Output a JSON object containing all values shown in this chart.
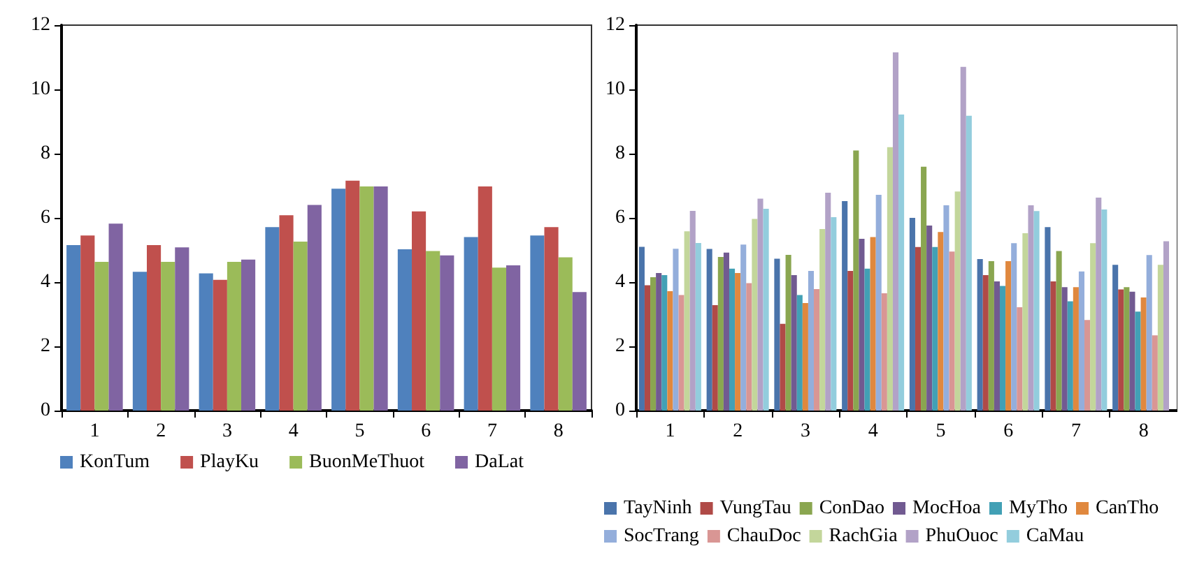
{
  "chart_data": [
    {
      "type": "bar",
      "categories": [
        "1",
        "2",
        "3",
        "4",
        "5",
        "6",
        "7",
        "8"
      ],
      "ylim": [
        0,
        12
      ],
      "yticks": [
        0,
        2,
        4,
        6,
        8,
        10,
        12
      ],
      "grid": false,
      "legend": "bottom",
      "series": [
        {
          "name": "KonTum",
          "color": "#4f81bd",
          "values": [
            5.15,
            4.32,
            4.27,
            5.71,
            6.91,
            5.02,
            5.4,
            5.45
          ]
        },
        {
          "name": "PlayKu",
          "color": "#c0504d",
          "values": [
            5.45,
            5.15,
            4.07,
            6.08,
            7.16,
            6.2,
            6.98,
            5.71
          ]
        },
        {
          "name": "BuonMeThuot",
          "color": "#9bbb59",
          "values": [
            4.63,
            4.63,
            4.63,
            5.26,
            6.98,
            4.97,
            4.45,
            4.77
          ]
        },
        {
          "name": "DaLat",
          "color": "#8064a2",
          "values": [
            5.82,
            5.08,
            4.7,
            6.4,
            6.98,
            4.83,
            4.52,
            3.69
          ]
        }
      ]
    },
    {
      "type": "bar",
      "categories": [
        "1",
        "2",
        "3",
        "4",
        "5",
        "6",
        "7",
        "8"
      ],
      "ylim": [
        0,
        12
      ],
      "yticks": [
        0,
        2,
        4,
        6,
        8,
        10,
        12
      ],
      "grid": false,
      "legend": "bottom",
      "series": [
        {
          "name": "TayNinh",
          "color": "#4a74ab",
          "values": [
            5.1,
            5.03,
            4.73,
            6.52,
            6.0,
            4.72,
            5.71,
            4.54
          ]
        },
        {
          "name": "VungTau",
          "color": "#b04a47",
          "values": [
            3.9,
            3.28,
            2.7,
            4.35,
            5.09,
            4.22,
            4.02,
            3.77
          ]
        },
        {
          "name": "ConDao",
          "color": "#8aa650",
          "values": [
            4.15,
            4.78,
            4.85,
            8.1,
            7.59,
            4.65,
            4.97,
            3.84
          ]
        },
        {
          "name": "MocHoa",
          "color": "#715a91",
          "values": [
            4.28,
            4.92,
            4.22,
            5.35,
            5.76,
            4.02,
            3.84,
            3.7
          ]
        },
        {
          "name": "MyTho",
          "color": "#42a0b5",
          "values": [
            4.22,
            4.42,
            3.6,
            4.42,
            5.09,
            3.88,
            3.4,
            3.08
          ]
        },
        {
          "name": "CanTho",
          "color": "#e0883e",
          "values": [
            3.72,
            4.28,
            3.35,
            5.4,
            5.56,
            4.65,
            3.84,
            3.52
          ]
        },
        {
          "name": "SocTrang",
          "color": "#94aedb",
          "values": [
            5.04,
            5.17,
            4.35,
            6.72,
            6.39,
            5.21,
            4.33,
            4.84
          ]
        },
        {
          "name": "ChauDoc",
          "color": "#d99694",
          "values": [
            3.6,
            3.97,
            3.78,
            3.65,
            4.95,
            3.22,
            2.82,
            2.34
          ]
        },
        {
          "name": "RachGia",
          "color": "#c3d69b",
          "values": [
            5.58,
            5.97,
            5.65,
            8.2,
            6.82,
            5.52,
            5.21,
            4.54
          ]
        },
        {
          "name": "PhuOuoc",
          "color": "#b2a2c7",
          "values": [
            6.22,
            6.6,
            6.78,
            11.15,
            10.7,
            6.39,
            6.63,
            5.27
          ]
        },
        {
          "name": "CaMau",
          "color": "#93cddd",
          "values": [
            5.22,
            6.28,
            6.02,
            9.22,
            9.18,
            6.21,
            6.26,
            null
          ]
        }
      ]
    }
  ]
}
